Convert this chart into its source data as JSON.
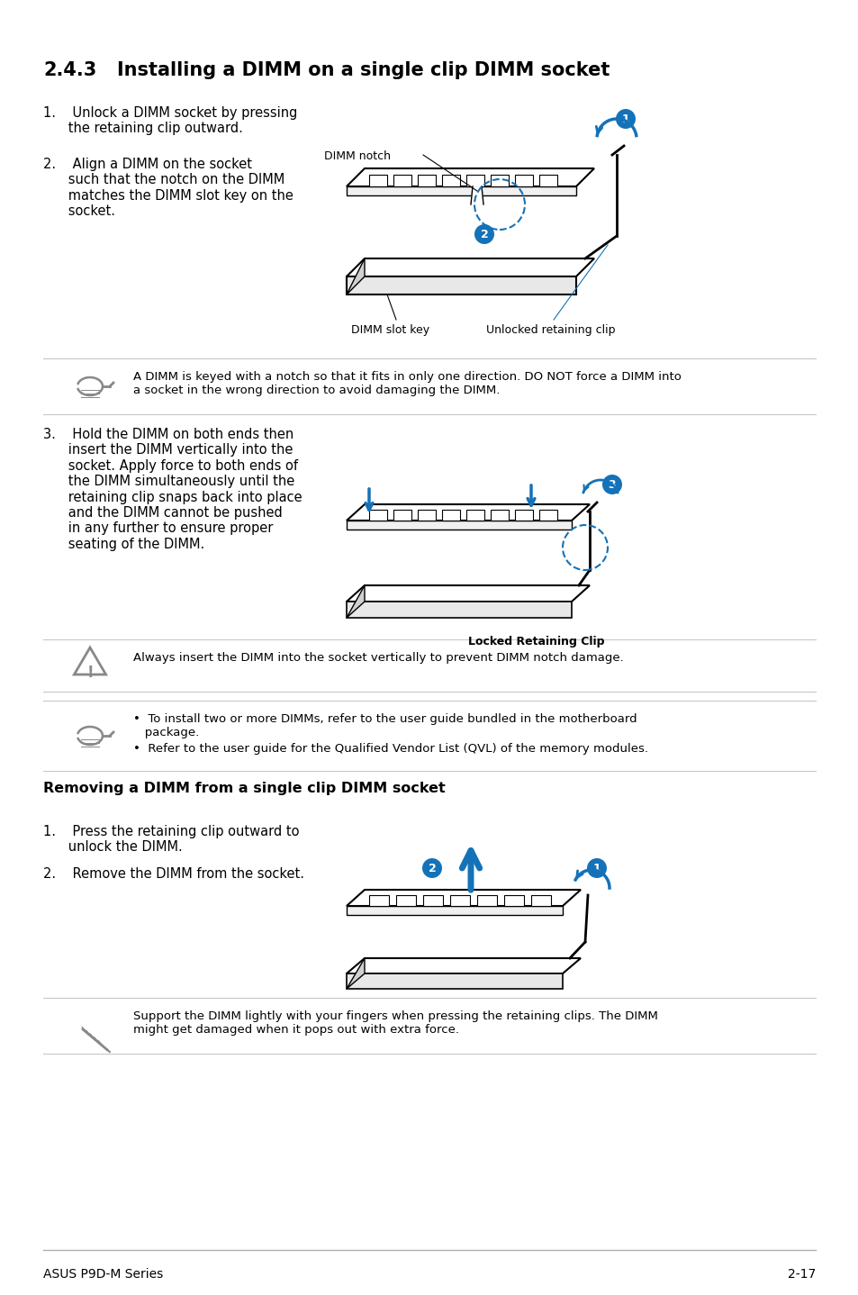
{
  "title_num": "2.4.3",
  "title_text": "Installing a DIMM on a single clip DIMM socket",
  "bg_color": "#ffffff",
  "text_color": "#000000",
  "blue_color": "#1472b8",
  "step1": "1.    Unlock a DIMM socket by pressing\n      the retaining clip outward.",
  "step2": "2.    Align a DIMM on the socket\n      such that the notch on the DIMM\n      matches the DIMM slot key on the\n      socket.",
  "dimm_notch_label": "DIMM notch",
  "dimm_slot_key_label": "DIMM slot key",
  "unlocked_clip_label": "Unlocked retaining clip",
  "note1": "A DIMM is keyed with a notch so that it fits in only one direction. DO NOT force a DIMM into\na socket in the wrong direction to avoid damaging the DIMM.",
  "step3": "3.    Hold the DIMM on both ends then\n      insert the DIMM vertically into the\n      socket. Apply force to both ends of\n      the DIMM simultaneously until the\n      retaining clip snaps back into place\n      and the DIMM cannot be pushed\n      in any further to ensure proper\n      seating of the DIMM.",
  "locked_clip_label": "Locked Retaining Clip",
  "note2": "Always insert the DIMM into the socket vertically to prevent DIMM notch damage.",
  "note3_b1": "To install two or more DIMMs, refer to the user guide bundled in the motherboard\n   package.",
  "note3_b2": "Refer to the user guide for the Qualified Vendor List (QVL) of the memory modules.",
  "remove_title": "Removing a DIMM from a single clip DIMM socket",
  "remove_step1": "1.    Press the retaining clip outward to\n      unlock the DIMM.",
  "remove_step2": "2.    Remove the DIMM from the socket.",
  "note4": "Support the DIMM lightly with your fingers when pressing the retaining clips. The DIMM\nmight get damaged when it pops out with extra force.",
  "footer_left": "ASUS P9D-M Series",
  "footer_right": "2-17",
  "line_color": "#c8c8c8",
  "icon_color": "#888888"
}
